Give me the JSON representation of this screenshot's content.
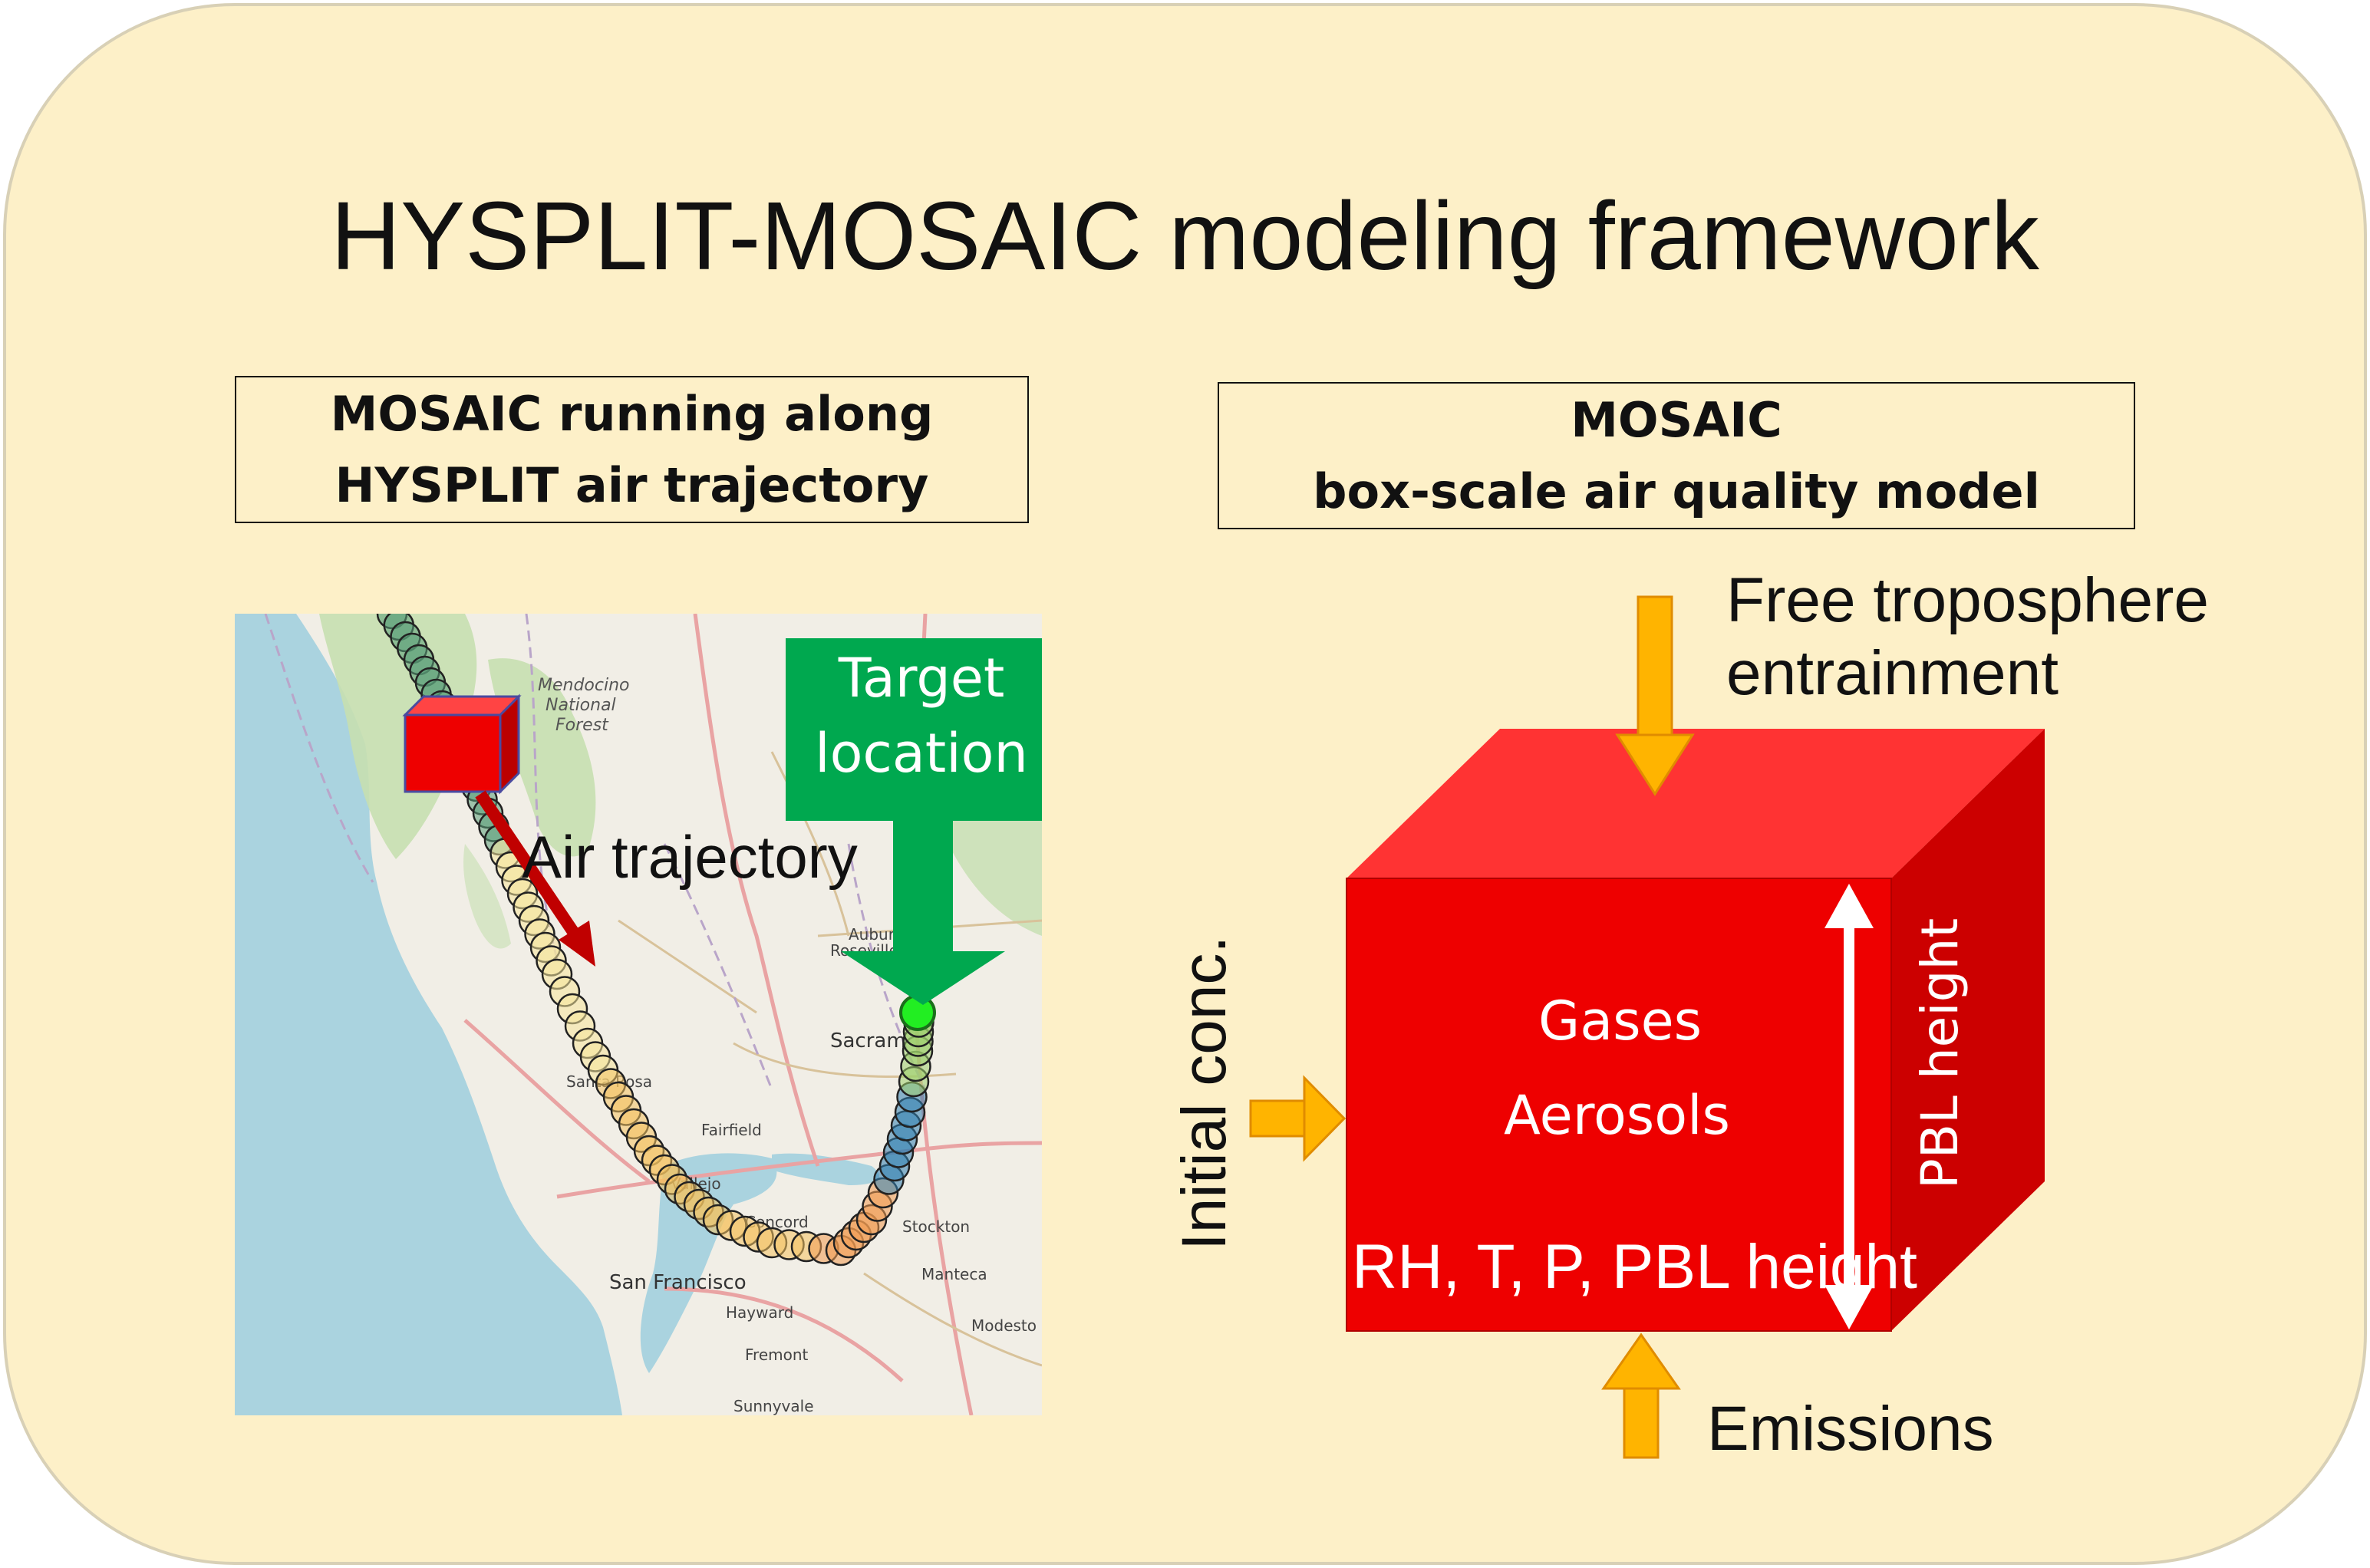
{
  "title": "HYSPLIT-MOSAIC modeling framework",
  "left_panel": {
    "header_lines": [
      "MOSAIC running along",
      "HYSPLIT air trajectory"
    ],
    "map": {
      "target_label_lines": [
        "Target",
        "location"
      ],
      "trajectory_label": "Air trajectory",
      "place_names": [
        "Mendocino",
        "National",
        "Forest",
        "Sacram",
        "Roseville",
        "Auburn",
        "Fairfield",
        "Vallejo",
        "Concord",
        "Stockton",
        "Manteca",
        "San Francisco",
        "Hayward",
        "Fremont",
        "Modesto",
        "Santa Rosa",
        "Sunnyvale"
      ]
    }
  },
  "right_panel": {
    "header_lines": [
      "MOSAIC",
      "box-scale air quality model"
    ],
    "entrainment_label_lines": [
      "Free troposphere",
      "entrainment"
    ],
    "emissions_label": "Emissions",
    "initial_label": "Initial conc.",
    "pbl_label": "PBL height",
    "cube_lines": [
      "Gases",
      "Aerosols"
    ],
    "conditions_label": "RH, T, P, PBL height"
  },
  "colors": {
    "background_panel": "#fdf0c8",
    "cube_front": "#ee0000",
    "cube_top": "#ff3333",
    "cube_side": "#cc0000",
    "arrow_orange": "#ffb400",
    "target_green": "#00a84f",
    "point_green": "#22ee22"
  }
}
